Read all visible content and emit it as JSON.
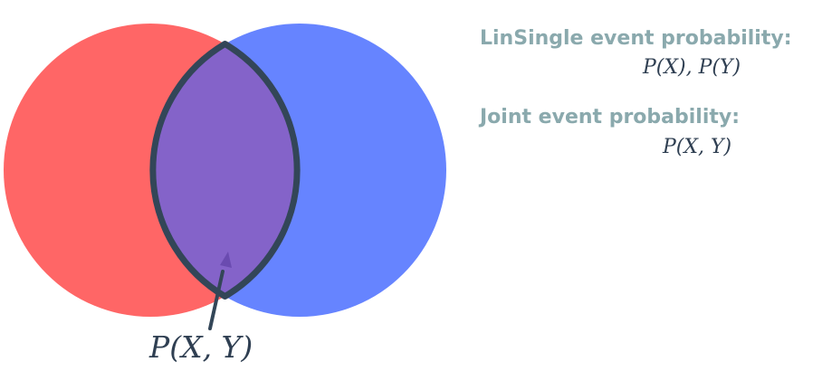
{
  "colors": {
    "circle_x": "#ff6666",
    "circle_y": "#6684ff",
    "intersection": "#8463c9",
    "outline": "#334658",
    "arrow": "#6a4bb0",
    "heading": "#8aa9ad",
    "formula": "#2f3f52"
  },
  "legend": {
    "single_heading": "LinSingle event probability:",
    "single_formula": "P(X), P(Y)",
    "joint_heading": "Joint event probability:",
    "joint_formula": "P(X, Y)"
  },
  "intersection_label": "P(X, Y)"
}
